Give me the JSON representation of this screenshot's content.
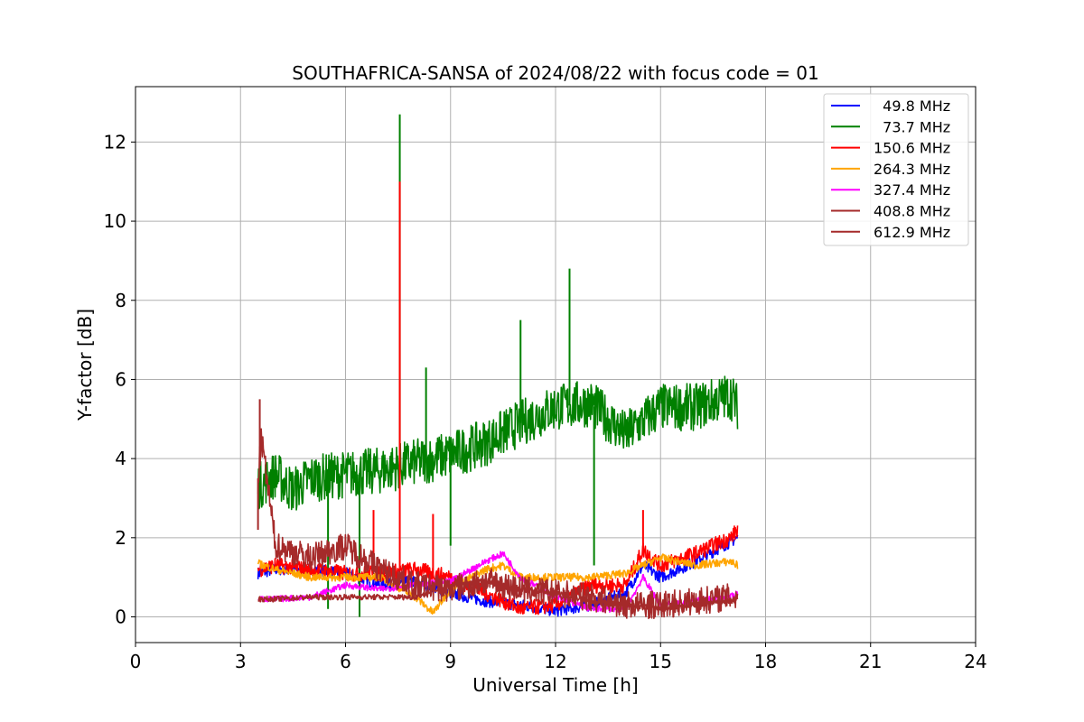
{
  "chart_data": {
    "type": "line",
    "title": "SOUTHAFRICA-SANSA of 2024/08/22 with focus code = 01",
    "xlabel": "Universal Time [h]",
    "ylabel": "Y-factor [dB]",
    "xlim": [
      0,
      24
    ],
    "ylim": [
      -0.65,
      13.4
    ],
    "xticks": [
      0,
      3,
      6,
      9,
      12,
      15,
      18,
      21,
      24
    ],
    "xtick_labels": [
      "0",
      "3",
      "6",
      "9",
      "12",
      "15",
      "18",
      "21",
      "24"
    ],
    "yticks": [
      0,
      2,
      4,
      6,
      8,
      10,
      12
    ],
    "ytick_labels": [
      "0",
      "2",
      "4",
      "6",
      "8",
      "10",
      "12"
    ],
    "grid": true,
    "legend_position": "top-right",
    "legend": [
      {
        "label": "  49.8 MHz",
        "color": "#0000ff"
      },
      {
        "label": "  73.7 MHz",
        "color": "#008000"
      },
      {
        "label": "150.6 MHz",
        "color": "#ff0000"
      },
      {
        "label": "264.3 MHz",
        "color": "#ffa500"
      },
      {
        "label": "327.4 MHz",
        "color": "#ff00ff"
      },
      {
        "label": "408.8 MHz",
        "color": "#a52a2a"
      },
      {
        "label": "612.9 MHz",
        "color": "#a52a2a"
      }
    ],
    "series": [
      {
        "name": "49.8 MHz",
        "color": "#0000ff",
        "noise": 0.15,
        "x": [
          3.5,
          4,
          5,
          6,
          7,
          8,
          9,
          10,
          11,
          12,
          13,
          14,
          14.5,
          15,
          16,
          17,
          17.2
        ],
        "y": [
          1.1,
          1.2,
          1.2,
          1.1,
          0.8,
          0.9,
          0.6,
          0.4,
          0.3,
          0.15,
          0.3,
          0.6,
          1.3,
          1.0,
          1.4,
          1.9,
          2.0
        ]
      },
      {
        "name": "73.7 MHz",
        "color": "#008000",
        "noise": 0.6,
        "x": [
          3.5,
          4,
          4.5,
          5,
          6,
          7,
          8,
          9,
          10,
          11,
          12,
          13,
          14,
          15,
          16,
          17,
          17.2
        ],
        "y": [
          3.3,
          3.6,
          3.2,
          3.5,
          3.6,
          3.7,
          3.9,
          4.1,
          4.4,
          4.9,
          5.3,
          5.4,
          4.6,
          5.3,
          5.3,
          5.6,
          5.3
        ],
        "spikes": [
          [
            7.55,
            12.7
          ],
          [
            12.4,
            8.8
          ],
          [
            8.3,
            6.3
          ],
          [
            11.0,
            7.5
          ],
          [
            9.0,
            1.8
          ],
          [
            13.1,
            1.3
          ],
          [
            6.4,
            0.0
          ],
          [
            5.5,
            0.2
          ]
        ]
      },
      {
        "name": "150.6 MHz",
        "color": "#ff0000",
        "noise": 0.2,
        "x": [
          3.5,
          4,
          5,
          6,
          7,
          8,
          9,
          10,
          11,
          12,
          13,
          14,
          14.5,
          15,
          16,
          17,
          17.2
        ],
        "y": [
          1.2,
          1.3,
          1.2,
          1.1,
          1.1,
          1.2,
          1.0,
          0.6,
          0.2,
          0.3,
          0.8,
          0.8,
          1.7,
          1.3,
          1.6,
          2.0,
          2.2
        ],
        "spikes": [
          [
            7.55,
            11.0
          ],
          [
            8.5,
            2.6
          ],
          [
            14.5,
            2.7
          ],
          [
            6.8,
            2.7
          ]
        ]
      },
      {
        "name": "264.3 MHz",
        "color": "#ffa500",
        "noise": 0.1,
        "x": [
          3.5,
          4,
          5,
          6,
          7,
          8,
          8.5,
          9,
          10,
          10.5,
          11,
          12,
          13,
          14,
          15,
          16,
          17,
          17.2
        ],
        "y": [
          1.35,
          1.2,
          1.0,
          1.0,
          1.0,
          0.5,
          0.1,
          0.7,
          1.2,
          1.3,
          1.0,
          1.0,
          1.0,
          1.1,
          1.5,
          1.3,
          1.4,
          1.3
        ]
      },
      {
        "name": "327.4 MHz",
        "color": "#ff00ff",
        "noise": 0.08,
        "x": [
          3.5,
          4,
          5,
          6,
          7,
          8,
          9,
          10,
          10.5,
          11,
          12,
          13,
          14,
          14.5,
          15,
          16,
          17,
          17.2
        ],
        "y": [
          0.45,
          0.45,
          0.5,
          0.8,
          0.7,
          0.8,
          0.9,
          1.4,
          1.6,
          1.0,
          0.5,
          0.2,
          0.2,
          1.0,
          0.3,
          0.4,
          0.5,
          0.6
        ]
      },
      {
        "name": "408.8 MHz",
        "color": "#a52a2a",
        "noise": 0.07,
        "x": [
          3.5,
          4,
          5,
          6,
          7,
          8,
          9,
          10,
          11,
          12,
          13,
          14,
          15,
          16,
          17,
          17.2
        ],
        "y": [
          0.45,
          0.45,
          0.5,
          0.5,
          0.5,
          0.5,
          0.8,
          0.9,
          0.7,
          0.6,
          0.4,
          0.3,
          0.2,
          0.3,
          0.4,
          0.45
        ]
      },
      {
        "name": "612.9 MHz",
        "color": "#a52a2a",
        "noise": 0.35,
        "x": [
          3.5,
          3.6,
          4,
          5,
          6,
          7,
          7.5,
          8,
          9,
          10,
          11,
          12,
          13,
          14,
          15,
          16,
          17,
          17.2
        ],
        "y": [
          3.5,
          4.5,
          1.8,
          1.5,
          1.8,
          1.2,
          1.0,
          0.8,
          0.7,
          0.9,
          0.7,
          0.6,
          0.5,
          0.3,
          0.3,
          0.4,
          0.5,
          0.5
        ],
        "spikes": [
          [
            3.55,
            5.5
          ],
          [
            3.5,
            2.2
          ]
        ]
      }
    ]
  }
}
